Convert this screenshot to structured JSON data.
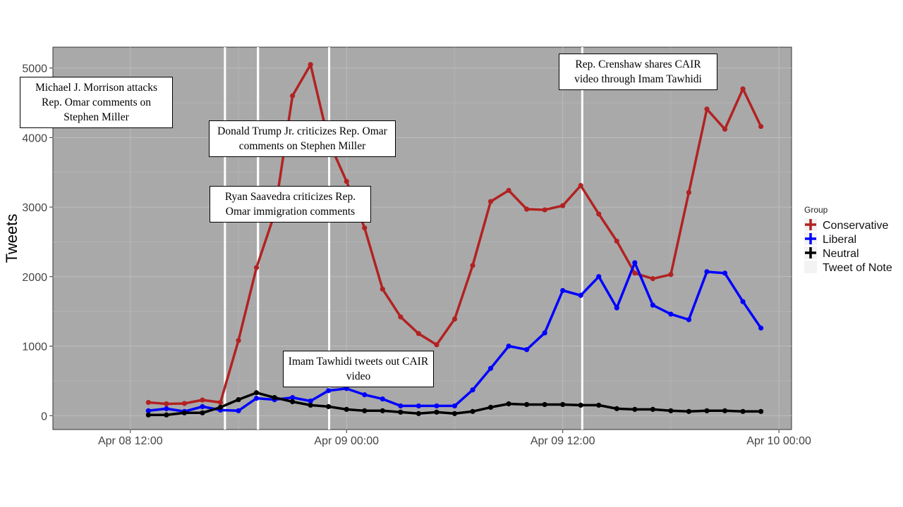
{
  "chart_data": {
    "type": "line",
    "title": "",
    "xlabel": "",
    "ylabel": "Tweets",
    "ylim": [
      -200,
      5300
    ],
    "yticks": [
      0,
      1000,
      2000,
      3000,
      4000,
      5000
    ],
    "xlim": [
      "2019-04-08 07:42",
      "2019-04-10 00:42"
    ],
    "xticks": [
      {
        "x": "2019-04-08 12:00",
        "label": "Apr 08 12:00"
      },
      {
        "x": "2019-04-09 00:00",
        "label": "Apr 09 00:00"
      },
      {
        "x": "2019-04-09 12:00",
        "label": "Apr 09 12:00"
      },
      {
        "x": "2019-04-10 00:00",
        "label": "Apr 10 00:00"
      }
    ],
    "grid": true,
    "legend_position": "right",
    "legend_title": "Group",
    "x": [
      "2019-04-08 13:00",
      "2019-04-08 14:00",
      "2019-04-08 15:00",
      "2019-04-08 16:00",
      "2019-04-08 17:00",
      "2019-04-08 18:00",
      "2019-04-08 19:00",
      "2019-04-08 20:00",
      "2019-04-08 21:00",
      "2019-04-08 22:00",
      "2019-04-08 23:00",
      "2019-04-09 00:00",
      "2019-04-09 01:00",
      "2019-04-09 02:00",
      "2019-04-09 03:00",
      "2019-04-09 04:00",
      "2019-04-09 05:00",
      "2019-04-09 06:00",
      "2019-04-09 07:00",
      "2019-04-09 08:00",
      "2019-04-09 09:00",
      "2019-04-09 10:00",
      "2019-04-09 11:00",
      "2019-04-09 12:00",
      "2019-04-09 13:00",
      "2019-04-09 14:00",
      "2019-04-09 15:00",
      "2019-04-09 16:00",
      "2019-04-09 17:00",
      "2019-04-09 18:00",
      "2019-04-09 19:00",
      "2019-04-09 20:00",
      "2019-04-09 21:00",
      "2019-04-09 22:00",
      "2019-04-09 23:00"
    ],
    "series": [
      {
        "name": "Conservative",
        "color": "#b22222",
        "values": [
          190,
          170,
          175,
          225,
          190,
          1080,
          2130,
          2900,
          4600,
          5050,
          3950,
          3370,
          2700,
          1820,
          1420,
          1180,
          1020,
          1390,
          2160,
          3080,
          3240,
          2970,
          2960,
          3020,
          3310,
          2900,
          2510,
          2050,
          1970,
          2030,
          3210,
          4410,
          4120,
          4700,
          4160
        ]
      },
      {
        "name": "Liberal",
        "color": "#0000ff",
        "values": [
          70,
          100,
          60,
          130,
          80,
          70,
          250,
          230,
          260,
          210,
          360,
          390,
          300,
          240,
          140,
          140,
          140,
          140,
          370,
          680,
          1000,
          950,
          1190,
          1800,
          1730,
          2000,
          1550,
          2200,
          1590,
          1460,
          1380,
          2070,
          2050,
          1640,
          1260
        ]
      },
      {
        "name": "Neutral",
        "color": "#000000",
        "values": [
          10,
          10,
          40,
          40,
          120,
          230,
          330,
          260,
          200,
          150,
          130,
          90,
          70,
          70,
          50,
          30,
          50,
          30,
          60,
          120,
          170,
          160,
          160,
          160,
          150,
          150,
          100,
          90,
          90,
          70,
          60,
          70,
          70,
          60,
          60
        ]
      }
    ],
    "tweets_of_note": [
      {
        "x": "2019-04-08 17:15",
        "text": "Michael J. Morrison attacks Rep. Omar comments on Stephen Miller"
      },
      {
        "x": "2019-04-08 19:05",
        "text": "Donald Trump Jr. criticizes Rep. Omar comments on Stephen Miller"
      },
      {
        "x": "2019-04-08 19:05",
        "text": "Ryan Saavedra criticizes Rep. Omar immigration comments"
      },
      {
        "x": "2019-04-08 23:02",
        "text": "Imam Tawhidi tweets out CAIR video"
      },
      {
        "x": "2019-04-09 13:05",
        "text": "Rep. Crenshaw shares CAIR video through Imam Tawhidi"
      }
    ],
    "legend_entries": [
      "Conservative",
      "Liberal",
      "Neutral",
      "Tweet of Note"
    ],
    "colors": {
      "panel": "#a9a9a9",
      "grid": "#bdbdbd",
      "note_line": "#ffffff"
    }
  }
}
